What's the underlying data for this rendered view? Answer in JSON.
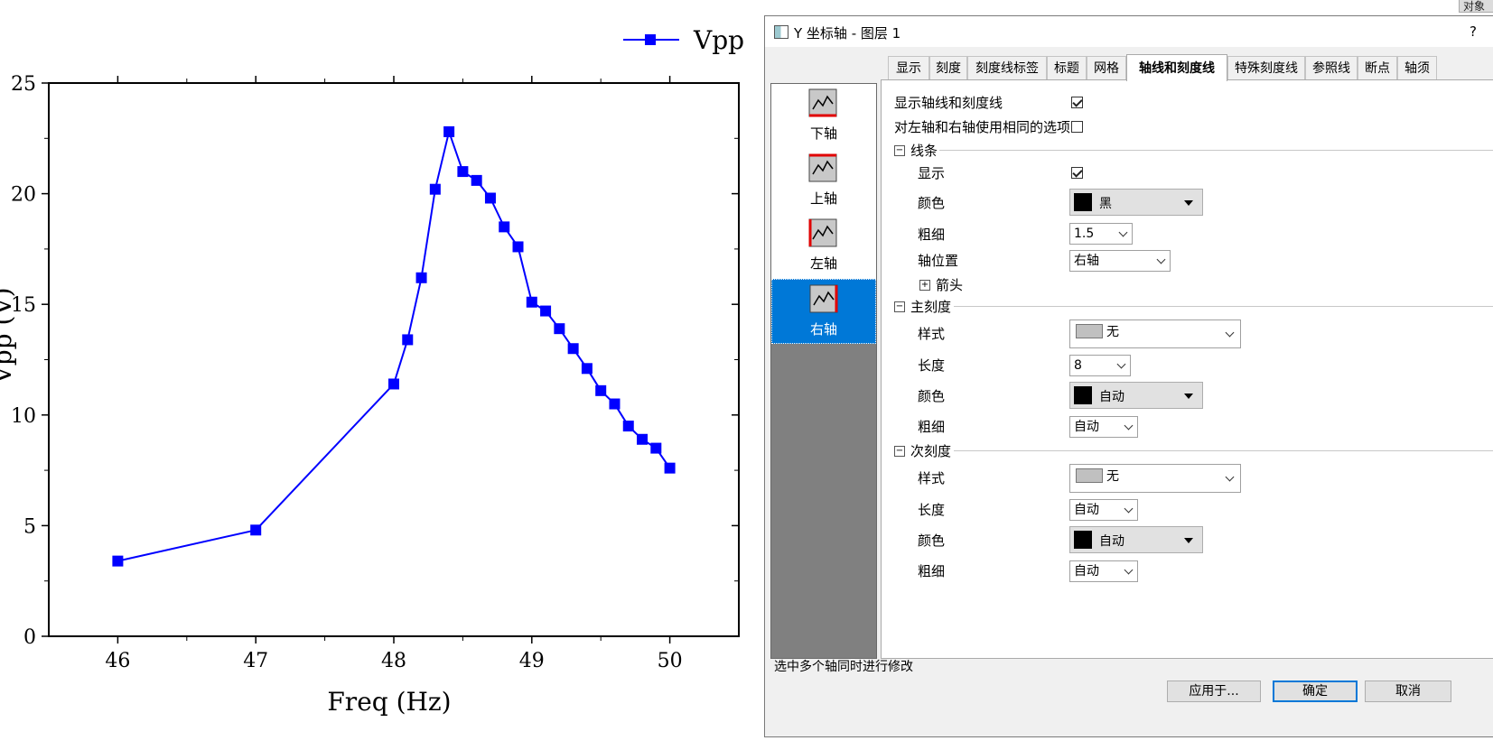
{
  "chart_data": {
    "type": "line",
    "xlabel": "Freq (Hz)",
    "ylabel": "Vpp (V)",
    "xlim": [
      45.5,
      50.5
    ],
    "ylim": [
      0,
      25
    ],
    "x_ticks": [
      "46",
      "47",
      "48",
      "49",
      "50"
    ],
    "y_ticks": [
      "0",
      "5",
      "10",
      "15",
      "20",
      "25"
    ],
    "legend_position": "top-right",
    "series": [
      {
        "name": "Vpp",
        "color": "#0000ff",
        "marker": "square",
        "x": [
          46,
          47,
          48,
          48.1,
          48.2,
          48.3,
          48.4,
          48.5,
          48.6,
          48.7,
          48.8,
          48.9,
          49,
          49.1,
          49.2,
          49.3,
          49.4,
          49.5,
          49.6,
          49.7,
          49.8,
          49.9,
          50
        ],
        "y": [
          3.4,
          4.8,
          11.4,
          13.4,
          16.2,
          20.2,
          22.8,
          21.0,
          20.6,
          19.8,
          18.5,
          17.6,
          15.1,
          14.7,
          13.9,
          13.0,
          12.1,
          11.1,
          10.5,
          9.5,
          8.9,
          8.5,
          7.6
        ]
      }
    ]
  },
  "corner_tab": {
    "label": "对象"
  },
  "dialog": {
    "title": "Y 坐标轴 - 图层 1",
    "help": "?",
    "tabs": [
      "显示",
      "刻度",
      "刻度线标签",
      "标题",
      "网格",
      "轴线和刻度线",
      "特殊刻度线",
      "参照线",
      "断点",
      "轴须"
    ],
    "active_tab": "轴线和刻度线",
    "axes": [
      {
        "label": "下轴",
        "selected": false
      },
      {
        "label": "上轴",
        "selected": false
      },
      {
        "label": "左轴",
        "selected": false
      },
      {
        "label": "右轴",
        "selected": true
      }
    ],
    "options": {
      "show_axis_label": "显示轴线和刻度线",
      "same_options_label": "对左轴和右轴使用相同的选项",
      "line_group": "线条",
      "show_label": "显示",
      "color_label": "颜色",
      "line_color_value": "黑",
      "width_label": "粗细",
      "line_width_value": "1.5",
      "axis_pos_label": "轴位置",
      "axis_pos_value": "右轴",
      "arrow_label": "箭头",
      "major_group": "主刻度",
      "style_label": "样式",
      "major_style_value": "无",
      "length_label": "长度",
      "major_length_value": "8",
      "major_color_value": "自动",
      "major_width_value": "自动",
      "minor_group": "次刻度",
      "minor_style_value": "无",
      "minor_length_value": "自动",
      "minor_color_value": "自动",
      "minor_width_value": "自动"
    },
    "status": "选中多个轴同时进行修改",
    "buttons": {
      "apply": "应用于...",
      "ok": "确定",
      "cancel": "取消"
    }
  }
}
